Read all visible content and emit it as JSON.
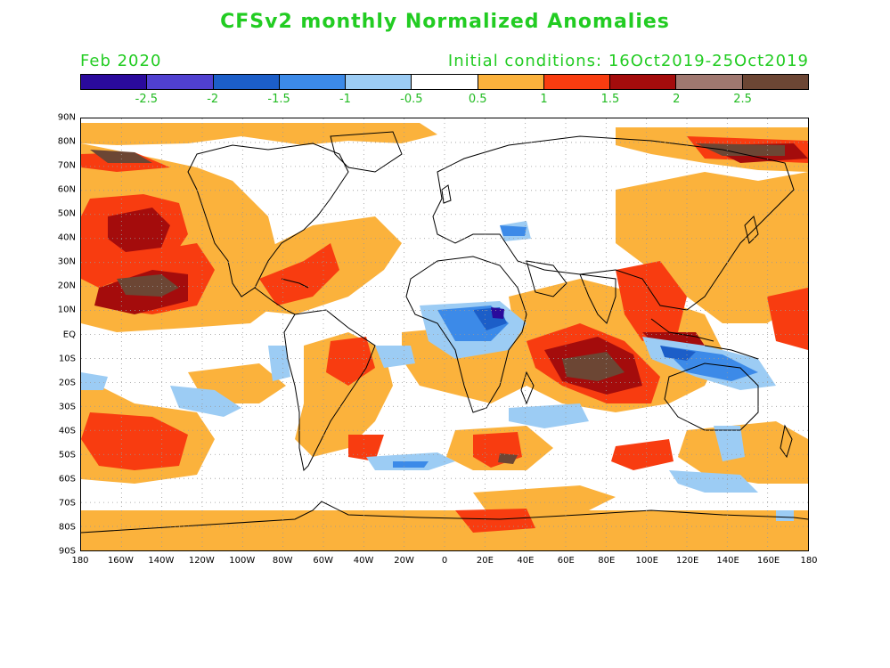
{
  "title": "CFSv2 monthly Normalized Anomalies",
  "subtitle_left": "Feb 2020",
  "subtitle_right": "Initial conditions: 16Oct2019-25Oct2019",
  "colorbar": {
    "colors": [
      "#2a0a9c",
      "#5040d0",
      "#1c5ec8",
      "#3c8ae8",
      "#9cccf4",
      "#ffffff",
      "#fbb23c",
      "#f83c10",
      "#a40c0c",
      "#a07870",
      "#6c4634"
    ],
    "labels": [
      "-2.5",
      "-2",
      "-1.5",
      "-1",
      "-0.5",
      "0.5",
      "1",
      "1.5",
      "2",
      "2.5"
    ]
  },
  "lat_labels": [
    "90N",
    "80N",
    "70N",
    "60N",
    "50N",
    "40N",
    "30N",
    "20N",
    "10N",
    "EQ",
    "10S",
    "20S",
    "30S",
    "40S",
    "50S",
    "60S",
    "70S",
    "80S",
    "90S"
  ],
  "lon_labels": [
    "180",
    "160W",
    "140W",
    "120W",
    "100W",
    "80W",
    "60W",
    "40W",
    "20W",
    "0",
    "20E",
    "40E",
    "60E",
    "80E",
    "100E",
    "120E",
    "140E",
    "160E",
    "180"
  ],
  "map_style": {
    "grid": "dotted",
    "coastline_color": "#000000",
    "contour_levels": [
      "-2.5",
      "-2",
      "-1.5",
      "-1",
      "-0.5",
      "0.5",
      "1",
      "1.5",
      "2",
      "2.5"
    ]
  }
}
